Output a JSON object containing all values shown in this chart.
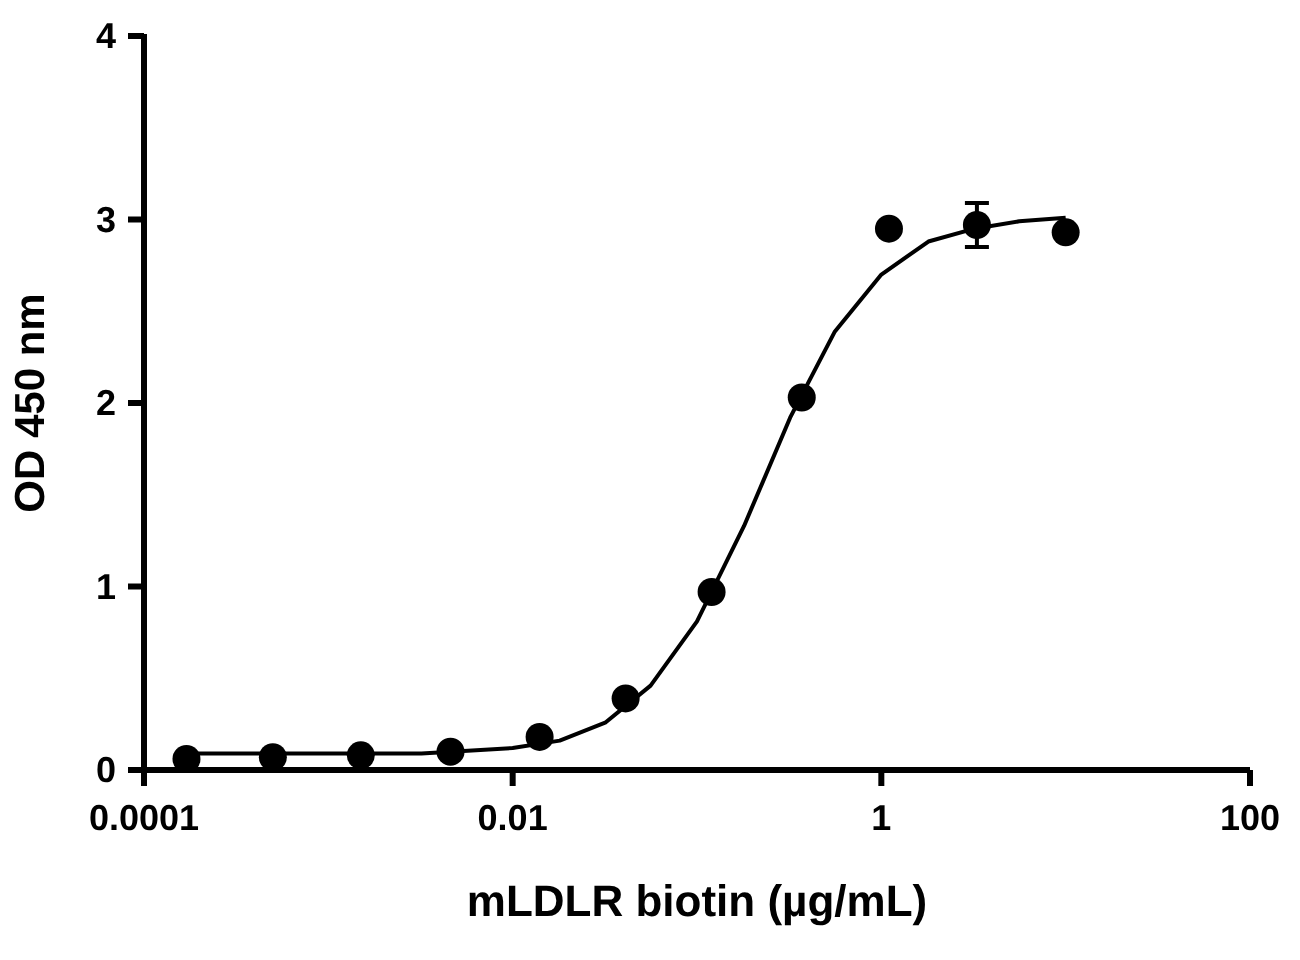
{
  "chart_data": {
    "type": "scatter",
    "xlabel": "mLDLR biotin (µg/mL)",
    "ylabel": "OD 450 nm",
    "log": "x",
    "xlim": [
      0.0001,
      100
    ],
    "xticks": [
      0.0001,
      0.01,
      1,
      100
    ],
    "ylim": [
      0,
      4
    ],
    "yticks": [
      0,
      1,
      2,
      3,
      4
    ],
    "grid": false,
    "series": [
      {
        "color": "#000000",
        "marker": "circle",
        "x": [
          0.00017,
          0.0005,
          0.0015,
          0.0046,
          0.014,
          0.041,
          0.12,
          0.37,
          1.1,
          3.3,
          10
        ],
        "values": [
          0.06,
          0.07,
          0.08,
          0.1,
          0.18,
          0.39,
          0.97,
          2.03,
          2.95,
          2.97,
          2.93
        ],
        "errors": [
          null,
          null,
          null,
          null,
          null,
          null,
          null,
          null,
          null,
          0.12,
          null
        ]
      },
      {
        "type": "line",
        "color": "#000000",
        "marker": "none",
        "line_style": "solid",
        "x": [
          0.00017,
          0.001,
          0.0032,
          0.01,
          0.018,
          0.032,
          0.056,
          0.1,
          0.18,
          0.32,
          0.56,
          1,
          1.8,
          3.2,
          5.6,
          10
        ],
        "values": [
          0.09,
          0.09,
          0.09,
          0.12,
          0.16,
          0.26,
          0.46,
          0.81,
          1.33,
          1.92,
          2.39,
          2.7,
          2.88,
          2.95,
          2.99,
          3.01
        ]
      }
    ]
  }
}
